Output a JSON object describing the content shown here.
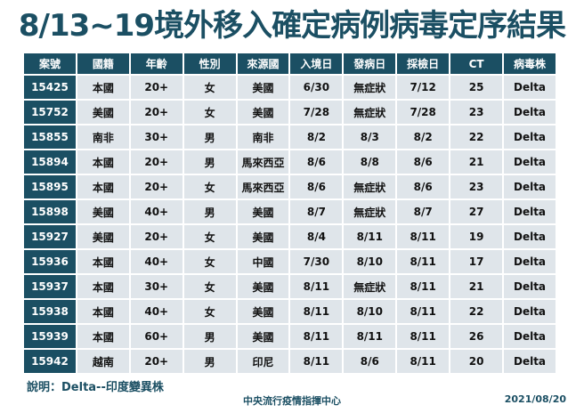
{
  "title": "8/13~19境外移入確定病例病毒定序結果",
  "table": {
    "headers": [
      "案號",
      "國籍",
      "年齡",
      "性別",
      "來源國",
      "入境日",
      "發病日",
      "採檢日",
      "CT",
      "病毒株"
    ],
    "rows": [
      [
        "15425",
        "本國",
        "20+",
        "女",
        "美國",
        "6/30",
        "無症狀",
        "7/12",
        "25",
        "Delta"
      ],
      [
        "15752",
        "美國",
        "20+",
        "女",
        "美國",
        "7/28",
        "無症狀",
        "7/28",
        "23",
        "Delta"
      ],
      [
        "15855",
        "南非",
        "30+",
        "男",
        "南非",
        "8/2",
        "8/3",
        "8/2",
        "22",
        "Delta"
      ],
      [
        "15894",
        "本國",
        "20+",
        "男",
        "馬來西亞",
        "8/6",
        "8/8",
        "8/6",
        "21",
        "Delta"
      ],
      [
        "15895",
        "本國",
        "20+",
        "女",
        "馬來西亞",
        "8/6",
        "無症狀",
        "8/6",
        "23",
        "Delta"
      ],
      [
        "15898",
        "美國",
        "40+",
        "男",
        "美國",
        "8/7",
        "無症狀",
        "8/7",
        "27",
        "Delta"
      ],
      [
        "15927",
        "美國",
        "20+",
        "女",
        "美國",
        "8/4",
        "8/11",
        "8/11",
        "19",
        "Delta"
      ],
      [
        "15936",
        "本國",
        "40+",
        "女",
        "中國",
        "7/30",
        "8/10",
        "8/11",
        "17",
        "Delta"
      ],
      [
        "15937",
        "本國",
        "30+",
        "女",
        "美國",
        "8/11",
        "無症狀",
        "8/11",
        "21",
        "Delta"
      ],
      [
        "15938",
        "本國",
        "40+",
        "女",
        "美國",
        "8/11",
        "8/10",
        "8/11",
        "22",
        "Delta"
      ],
      [
        "15939",
        "本國",
        "60+",
        "男",
        "美國",
        "8/11",
        "8/11",
        "8/11",
        "26",
        "Delta"
      ],
      [
        "15942",
        "越南",
        "20+",
        "男",
        "印尼",
        "8/11",
        "8/6",
        "8/11",
        "20",
        "Delta"
      ]
    ]
  },
  "note": "說明：Delta--印度變異株",
  "organization": "中央流行疫情指揮中心",
  "date": "2021/08/20",
  "colors": {
    "header": "#1b4f63",
    "cell": "#dfe5ea"
  }
}
